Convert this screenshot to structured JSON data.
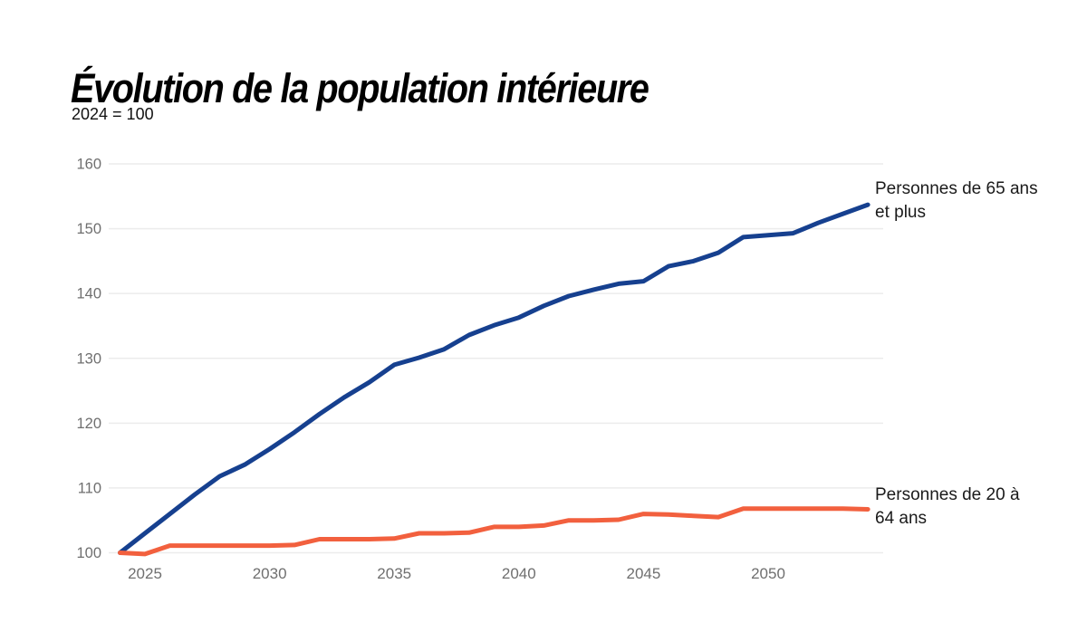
{
  "page": {
    "title": "Évolution de la population intérieure",
    "subtitle": "2024 = 100"
  },
  "colors": {
    "series_65_plus": "#16408f",
    "series_20_64": "#f2603e",
    "grid": "#ececec",
    "axis_text": "#6f6f6f",
    "annotation_text": "#1a1a1a",
    "background": "#ffffff"
  },
  "chart_data": {
    "type": "line",
    "title": "Évolution de la population intérieure",
    "subtitle": "2024 = 100",
    "x": [
      2024,
      2025,
      2026,
      2027,
      2028,
      2029,
      2030,
      2031,
      2032,
      2033,
      2034,
      2035,
      2036,
      2037,
      2038,
      2039,
      2040,
      2041,
      2042,
      2043,
      2044,
      2045,
      2046,
      2047,
      2048,
      2049,
      2050,
      2051,
      2052,
      2053,
      2054
    ],
    "series": [
      {
        "name": "Personnes de 65 ans et plus",
        "color": "#16408f",
        "values": [
          100,
          103,
          106,
          109,
          111.8,
          113.6,
          116,
          118.6,
          121.4,
          124,
          126.3,
          129,
          130.1,
          131.4,
          133.6,
          135.1,
          136.3,
          138.1,
          139.6,
          140.6,
          141.5,
          141.9,
          144.2,
          145,
          146.3,
          148.7,
          149,
          149.3,
          150.9,
          152.3,
          153.7
        ]
      },
      {
        "name": "Personnes de 20 à 64 ans",
        "color": "#f2603e",
        "values": [
          100,
          99.8,
          101.1,
          101.1,
          101.1,
          101.1,
          101.1,
          101.2,
          102.1,
          102.1,
          102.1,
          102.2,
          103,
          103,
          103.1,
          104,
          104,
          104.2,
          105,
          105,
          105.1,
          106,
          105.9,
          105.7,
          105.5,
          106.8,
          106.8,
          106.8,
          106.8,
          106.8,
          106.7
        ]
      }
    ],
    "xticks": [
      2025,
      2030,
      2035,
      2040,
      2045,
      2050
    ],
    "yticks": [
      100,
      110,
      120,
      130,
      140,
      150,
      160
    ],
    "xlim": [
      2024,
      2054
    ],
    "ylim": [
      100,
      160
    ],
    "grid": true,
    "legend": "direct labels at right end of each line"
  }
}
